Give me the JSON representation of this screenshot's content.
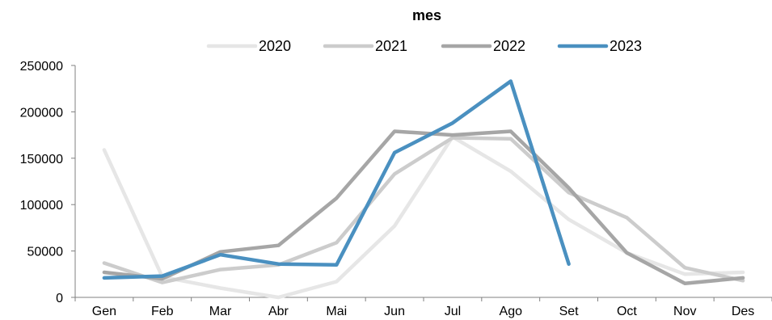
{
  "chart_data": {
    "type": "line",
    "title": "mes",
    "xlabel": "",
    "ylabel": "",
    "categories": [
      "Gen",
      "Feb",
      "Mar",
      "Abr",
      "Mai",
      "Jun",
      "Jul",
      "Ago",
      "Set",
      "Oct",
      "Nov",
      "Des"
    ],
    "ylim": [
      0,
      250000
    ],
    "yticks": [
      0,
      50000,
      100000,
      150000,
      200000,
      250000
    ],
    "ytick_labels": [
      "0",
      "50000",
      "100000",
      "150000",
      "200000",
      "250000"
    ],
    "grid": false,
    "legend_position": "top",
    "series": [
      {
        "name": "2020",
        "color": "#e6e6e6",
        "values": [
          159000,
          22000,
          10000,
          0,
          17000,
          77000,
          173000,
          136000,
          84000,
          48000,
          25000,
          27000
        ]
      },
      {
        "name": "2021",
        "color": "#cccccc",
        "values": [
          37000,
          16000,
          30000,
          35000,
          59000,
          133000,
          172000,
          171000,
          113000,
          86000,
          32000,
          18000
        ]
      },
      {
        "name": "2022",
        "color": "#a6a6a6",
        "values": [
          27000,
          20000,
          49000,
          56000,
          107000,
          179000,
          175000,
          179000,
          118000,
          48000,
          15000,
          21000
        ]
      },
      {
        "name": "2023",
        "color": "#4a90c0",
        "values": [
          21000,
          23000,
          46000,
          36000,
          35000,
          156000,
          188000,
          233000,
          36000,
          null,
          null,
          null
        ]
      }
    ]
  }
}
